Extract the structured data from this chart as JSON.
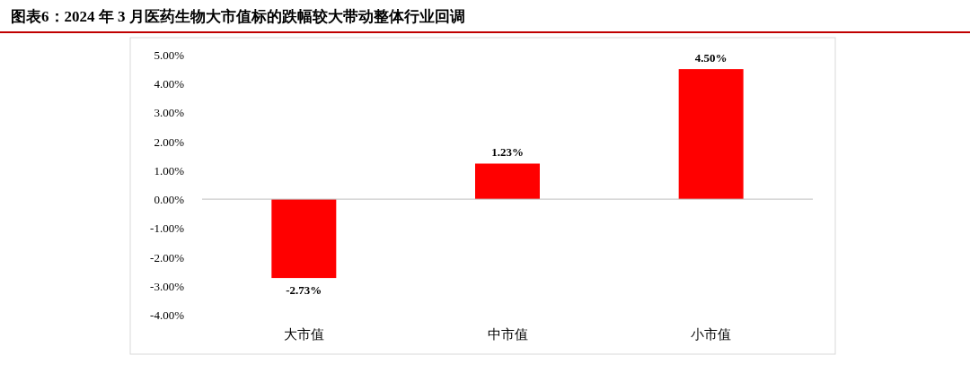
{
  "chart_data": {
    "type": "bar",
    "title": "图表6：2024 年 3 月医药生物大市值标的跌幅较大带动整体行业回调",
    "categories": [
      "大市值",
      "中市值",
      "小市值"
    ],
    "values": [
      -2.73,
      1.23,
      4.5
    ],
    "value_labels": [
      "-2.73%",
      "1.23%",
      "4.50%"
    ],
    "color": "#ff0000",
    "ylim": [
      -4,
      5
    ],
    "yticks": [
      {
        "value": -4,
        "label": "-4.00%"
      },
      {
        "value": -3,
        "label": "-3.00%"
      },
      {
        "value": -2,
        "label": "-2.00%"
      },
      {
        "value": -1,
        "label": "-1.00%"
      },
      {
        "value": 0,
        "label": "0.00%"
      },
      {
        "value": 1,
        "label": "1.00%"
      },
      {
        "value": 2,
        "label": "2.00%"
      },
      {
        "value": 3,
        "label": "3.00%"
      },
      {
        "value": 4,
        "label": "4.00%"
      },
      {
        "value": 5,
        "label": "5.00%"
      }
    ]
  }
}
